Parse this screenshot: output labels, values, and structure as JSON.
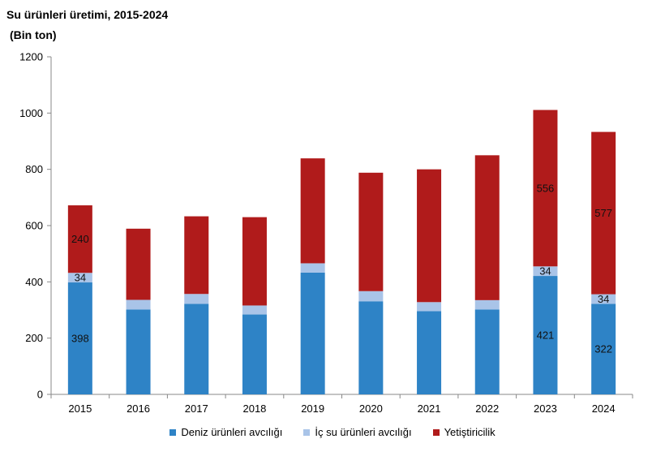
{
  "chart_data": {
    "type": "bar",
    "stacked": true,
    "title": "Su ürünleri üretimi, 2015-2024",
    "subtitle": " (Bin ton)",
    "categories": [
      "2015",
      "2016",
      "2017",
      "2018",
      "2019",
      "2020",
      "2021",
      "2022",
      "2023",
      "2024"
    ],
    "ylim": [
      0,
      1200
    ],
    "yticks": [
      0,
      200,
      400,
      600,
      800,
      1000,
      1200
    ],
    "legend_position": "bottom",
    "series": [
      {
        "name": "Deniz ürünleri avcılığı",
        "color": "#2e83c6",
        "values": [
          398,
          302,
          322,
          284,
          433,
          331,
          296,
          302,
          421,
          322
        ],
        "labels": [
          "398",
          null,
          null,
          null,
          null,
          null,
          null,
          null,
          "421",
          "322"
        ]
      },
      {
        "name": "İç su ürünleri avcılığı",
        "color": "#a9c4e8",
        "values": [
          34,
          34,
          35,
          32,
          33,
          36,
          32,
          33,
          34,
          34
        ],
        "labels": [
          "34",
          null,
          null,
          null,
          null,
          null,
          null,
          null,
          "34",
          "34"
        ]
      },
      {
        "name": "Yetiştiricilik",
        "color": "#b01b1b",
        "values": [
          240,
          253,
          276,
          314,
          373,
          421,
          472,
          515,
          556,
          577
        ],
        "labels": [
          "240",
          null,
          null,
          null,
          null,
          null,
          null,
          null,
          "556",
          "577"
        ]
      }
    ]
  }
}
